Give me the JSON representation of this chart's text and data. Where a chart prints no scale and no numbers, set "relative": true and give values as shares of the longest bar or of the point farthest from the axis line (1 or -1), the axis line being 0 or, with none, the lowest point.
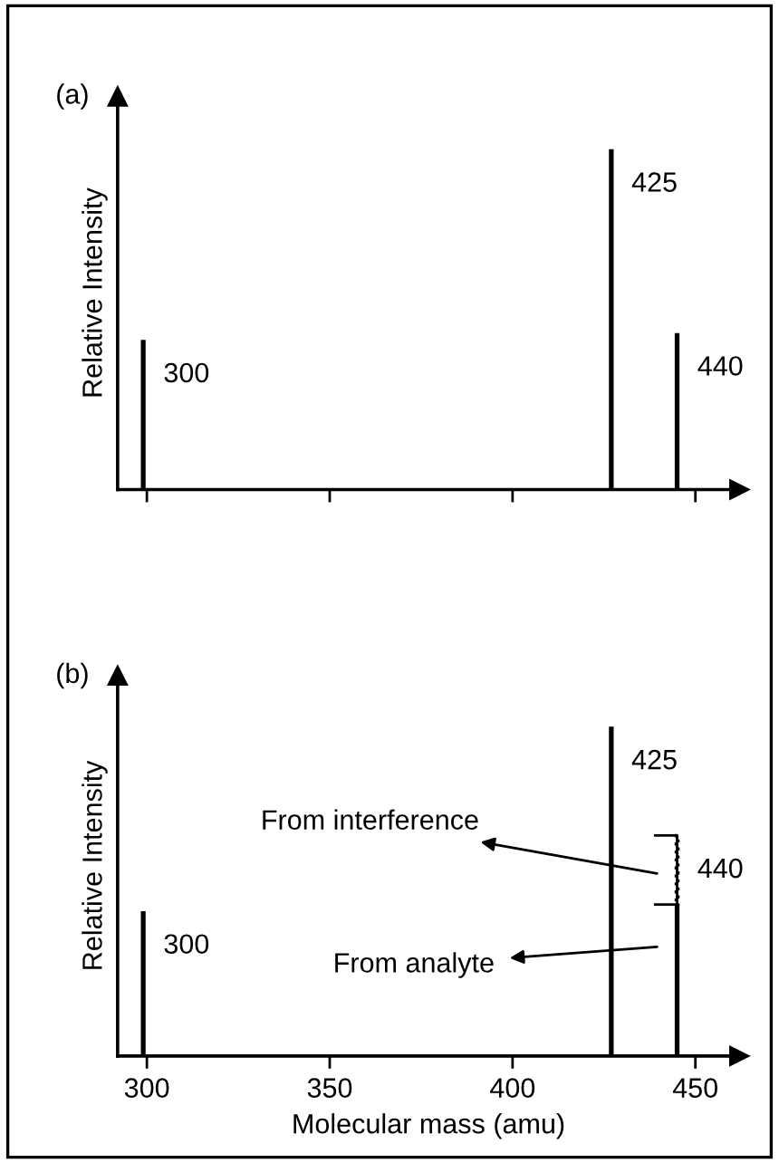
{
  "chart_data": [
    {
      "type": "bar",
      "title": "(a)",
      "ylabel": "Relative Intensity",
      "relative": true,
      "xlim": [
        292,
        462
      ],
      "xticks": [
        {
          "value": 300,
          "label": null
        },
        {
          "value": 350,
          "label": null
        },
        {
          "value": 400,
          "label": null
        },
        {
          "value": 450,
          "label": null
        }
      ],
      "tick_labels": false,
      "series": [
        {
          "color": "#000000",
          "x": [
            299,
            427,
            445
          ],
          "values": [
            0.44,
            1,
            0.46
          ]
        }
      ],
      "annotations": [
        {
          "text": "300",
          "x": 299,
          "y": 0.44
        },
        {
          "text": "425",
          "x": 427,
          "y": 1
        },
        {
          "text": "440",
          "x": 445,
          "y": 0.46
        }
      ]
    },
    {
      "type": "bar",
      "title": "(b)",
      "xlabel": "Molecular mass (amu)",
      "ylabel": "Relative Intensity",
      "relative": true,
      "stacked": true,
      "xlim": [
        292,
        462
      ],
      "xticks": [
        300,
        350,
        400,
        450
      ],
      "tick_labels": "x",
      "x": [
        299,
        427,
        445
      ],
      "series": [
        {
          "color": "#000000",
          "values": [
            0.44,
            1,
            0.46
          ]
        },
        {
          "color": "#000000",
          "values": [
            null,
            null,
            0.21
          ],
          "line_style": "dotted"
        }
      ],
      "annotations": [
        {
          "text": "300",
          "x": 299,
          "y": 0.44
        },
        {
          "text": "425",
          "x": 427,
          "y": 1
        },
        {
          "text": "440",
          "x": 445,
          "y": 0.67
        },
        "From interference",
        "From analyte"
      ]
    }
  ]
}
